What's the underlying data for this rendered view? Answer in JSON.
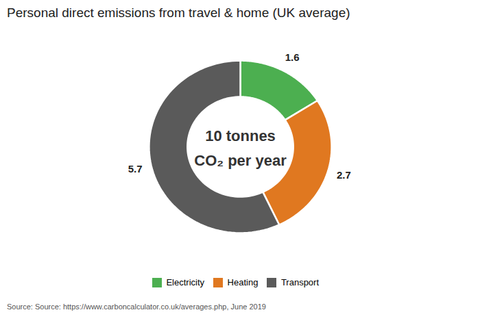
{
  "chart_data": {
    "type": "donut",
    "title": "Personal direct emissions from travel & home (UK average)",
    "categories": [
      "Electricity",
      "Heating",
      "Transport"
    ],
    "values": [
      1.6,
      2.7,
      5.7
    ],
    "colors": [
      "#4caf50",
      "#e07820",
      "#5a5a5a"
    ],
    "data_labels": true,
    "legend": "bottom",
    "tick_labels": false,
    "annotations": [
      "10 tonnes",
      "CO₂ per year"
    ],
    "source": "Source:  Source: https://www.carboncalculator.co.uk/averages.php, June 2019"
  }
}
